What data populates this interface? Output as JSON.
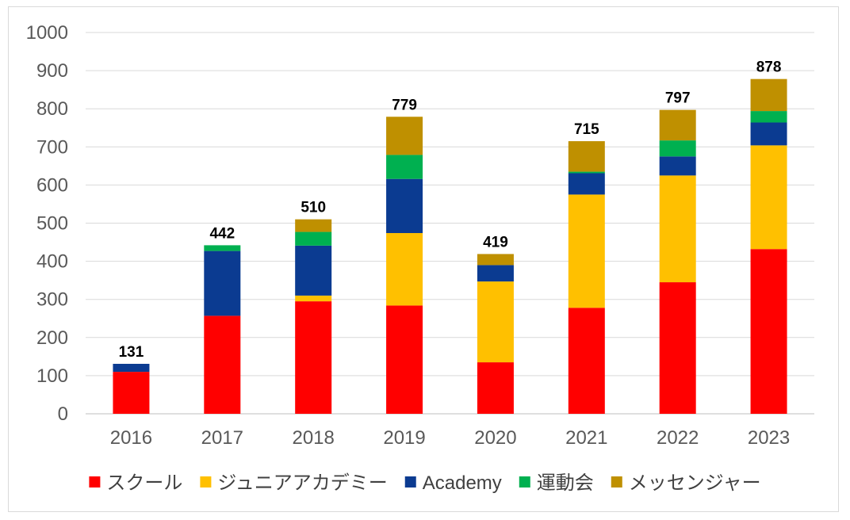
{
  "chart_data": {
    "type": "bar",
    "stacked": true,
    "title": "",
    "xlabel": "",
    "ylabel": "",
    "ylim": [
      0,
      1000
    ],
    "yticks": [
      0,
      100,
      200,
      300,
      400,
      500,
      600,
      700,
      800,
      900,
      1000
    ],
    "grid": true,
    "legend_position": "bottom",
    "categories": [
      "2016",
      "2017",
      "2018",
      "2019",
      "2020",
      "2021",
      "2022",
      "2023"
    ],
    "series": [
      {
        "name": "スクール",
        "color": "#ff0000",
        "values": [
          110,
          257,
          295,
          284,
          135,
          278,
          345,
          432
        ]
      },
      {
        "name": "ジュニアアカデミー",
        "color": "#ffc000",
        "values": [
          0,
          0,
          15,
          190,
          212,
          297,
          280,
          272
        ]
      },
      {
        "name": "Academy",
        "color": "#0b3b91",
        "values": [
          21,
          170,
          131,
          142,
          43,
          56,
          50,
          60
        ]
      },
      {
        "name": "運動会",
        "color": "#00b050",
        "values": [
          0,
          15,
          36,
          63,
          0,
          4,
          42,
          30
        ]
      },
      {
        "name": "メッセンジャー",
        "color": "#bf9000",
        "values": [
          0,
          0,
          33,
          100,
          29,
          80,
          80,
          84
        ]
      }
    ],
    "totals": [
      "131",
      "442",
      "510",
      "779",
      "419",
      "715",
      "797",
      "878"
    ]
  }
}
